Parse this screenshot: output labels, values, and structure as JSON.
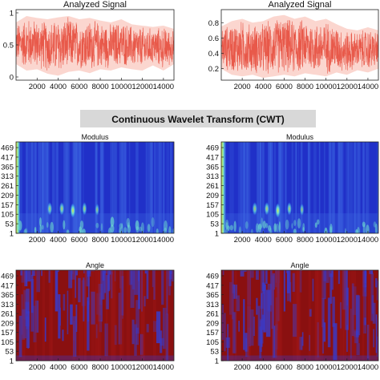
{
  "figure_title": "Continuous Wavelet Transform (CWT)",
  "colors": {
    "signal": "#e8594a",
    "signal_fill": "#f8b4a8",
    "band_bg": "#d8d8d8",
    "modulus_bg": "#2030c8",
    "modulus_bg_light": "#3b63e0",
    "modulus_peak": "#e6e83a",
    "modulus_mid": "#6fe0d0",
    "angle_red": "#8a1010",
    "angle_blue": "#3a3ac8"
  },
  "chart_data": [
    {
      "id": "signal-left",
      "type": "area",
      "title": "Analyzed Signal",
      "xlim": [
        0,
        15000
      ],
      "xticks": [
        2000,
        4000,
        6000,
        8000,
        10000,
        12000,
        14000
      ],
      "xtick_labels": [
        "2000",
        "4000",
        "6000",
        "8000",
        "10000",
        "12000",
        "14000"
      ],
      "ylim": [
        -0.05,
        1.05
      ],
      "yticks": [
        0,
        0.5,
        1
      ],
      "ytick_labels": [
        "0",
        "0.5",
        "1"
      ],
      "grid": false,
      "envelope": {
        "x": [
          0,
          1000,
          2000,
          3000,
          4000,
          5000,
          6000,
          7000,
          8000,
          9000,
          10000,
          11000,
          12000,
          13000,
          14000,
          15000
        ],
        "upper": [
          0.85,
          0.95,
          0.92,
          0.9,
          0.93,
          0.95,
          0.9,
          0.92,
          0.88,
          0.85,
          0.9,
          0.82,
          0.8,
          0.78,
          0.8,
          0.75
        ],
        "lower": [
          0.2,
          0.1,
          0.12,
          0.05,
          0.02,
          0.08,
          0.1,
          0.06,
          0.12,
          0.1,
          0.15,
          0.12,
          0.1,
          0.18,
          0.1,
          0.2
        ]
      }
    },
    {
      "id": "signal-right",
      "type": "area",
      "title": "Analyzed Signal",
      "xlim": [
        0,
        15000
      ],
      "xticks": [
        2000,
        4000,
        6000,
        8000,
        10000,
        12000,
        14000
      ],
      "xtick_labels": [
        "2000",
        "4000",
        "6000",
        "8000",
        "10000",
        "12000",
        "14000"
      ],
      "ylim": [
        0.05,
        0.97
      ],
      "yticks": [
        0.2,
        0.4,
        0.6,
        0.8
      ],
      "ytick_labels": [
        "0.2",
        "0.4",
        "0.6",
        "0.8"
      ],
      "grid": false,
      "envelope": {
        "x": [
          0,
          1000,
          2000,
          3000,
          4000,
          5000,
          6000,
          7000,
          8000,
          9000,
          10000,
          11000,
          12000,
          13000,
          14000,
          15000
        ],
        "upper": [
          0.75,
          0.82,
          0.85,
          0.8,
          0.82,
          0.88,
          0.9,
          0.85,
          0.88,
          0.82,
          0.85,
          0.78,
          0.72,
          0.7,
          0.74,
          0.7
        ],
        "lower": [
          0.2,
          0.12,
          0.1,
          0.12,
          0.08,
          0.1,
          0.12,
          0.1,
          0.14,
          0.12,
          0.1,
          0.15,
          0.12,
          0.18,
          0.15,
          0.2
        ]
      }
    },
    {
      "id": "modulus-left",
      "type": "heatmap",
      "title": "Modulus",
      "xlim": [
        0,
        15000
      ],
      "xticks": [
        2000,
        4000,
        6000,
        8000,
        10000,
        12000,
        14000
      ],
      "xtick_labels": [
        "2000",
        "4000",
        "6000",
        "8000",
        "10000",
        "12000",
        "14000"
      ],
      "ylim": [
        1,
        500
      ],
      "yticks": [
        1,
        53,
        105,
        157,
        209,
        261,
        313,
        365,
        417,
        469
      ],
      "ytick_labels": [
        "1",
        "53",
        "105",
        "157",
        "209",
        "261",
        "313",
        "365",
        "417",
        "469"
      ],
      "blobs": [
        {
          "x": 3200,
          "y": 135,
          "w": 500,
          "h": 75,
          "level": 0.6
        },
        {
          "x": 4350,
          "y": 135,
          "w": 500,
          "h": 75,
          "level": 0.7
        },
        {
          "x": 5400,
          "y": 125,
          "w": 520,
          "h": 85,
          "level": 0.95
        },
        {
          "x": 6500,
          "y": 135,
          "w": 460,
          "h": 75,
          "level": 0.65
        },
        {
          "x": 7700,
          "y": 130,
          "w": 420,
          "h": 70,
          "level": 0.45
        }
      ]
    },
    {
      "id": "modulus-right",
      "type": "heatmap",
      "title": "Modulus",
      "xlim": [
        0,
        15000
      ],
      "xticks": [
        2000,
        4000,
        6000,
        8000,
        10000,
        12000,
        14000
      ],
      "xtick_labels": [
        "2000",
        "4000",
        "6000",
        "8000",
        "10000",
        "12000",
        "14000"
      ],
      "ylim": [
        1,
        500
      ],
      "yticks": [
        1,
        53,
        105,
        157,
        209,
        261,
        313,
        365,
        417,
        469
      ],
      "ytick_labels": [
        "1",
        "53",
        "105",
        "157",
        "209",
        "261",
        "313",
        "365",
        "417",
        "469"
      ],
      "blobs": [
        {
          "x": 3200,
          "y": 135,
          "w": 500,
          "h": 75,
          "level": 0.6
        },
        {
          "x": 4350,
          "y": 135,
          "w": 500,
          "h": 75,
          "level": 0.7
        },
        {
          "x": 5400,
          "y": 125,
          "w": 520,
          "h": 85,
          "level": 0.95
        },
        {
          "x": 6500,
          "y": 135,
          "w": 460,
          "h": 75,
          "level": 0.65
        },
        {
          "x": 7700,
          "y": 130,
          "w": 420,
          "h": 70,
          "level": 0.45
        }
      ]
    },
    {
      "id": "angle-left",
      "type": "heatmap",
      "title": "Angle",
      "xlim": [
        0,
        15000
      ],
      "xticks": [
        2000,
        4000,
        6000,
        8000,
        10000,
        12000,
        14000
      ],
      "xtick_labels": [
        "2000",
        "4000",
        "6000",
        "8000",
        "10000",
        "12000",
        "14000"
      ],
      "ylim": [
        1,
        500
      ],
      "yticks": [
        1,
        53,
        105,
        157,
        209,
        261,
        313,
        365,
        417,
        469
      ],
      "ytick_labels": [
        "1",
        "53",
        "105",
        "157",
        "209",
        "261",
        "313",
        "365",
        "417",
        "469"
      ]
    },
    {
      "id": "angle-right",
      "type": "heatmap",
      "title": "Angle",
      "xlim": [
        0,
        15000
      ],
      "xticks": [
        2000,
        4000,
        6000,
        8000,
        10000,
        12000,
        14000
      ],
      "xtick_labels": [
        "2000",
        "4000",
        "6000",
        "8000",
        "10000",
        "12000",
        "14000"
      ],
      "ylim": [
        1,
        500
      ],
      "yticks": [
        1,
        53,
        105,
        157,
        209,
        261,
        313,
        365,
        417,
        469
      ],
      "ytick_labels": [
        "1",
        "53",
        "105",
        "157",
        "209",
        "261",
        "313",
        "365",
        "417",
        "469"
      ]
    }
  ]
}
